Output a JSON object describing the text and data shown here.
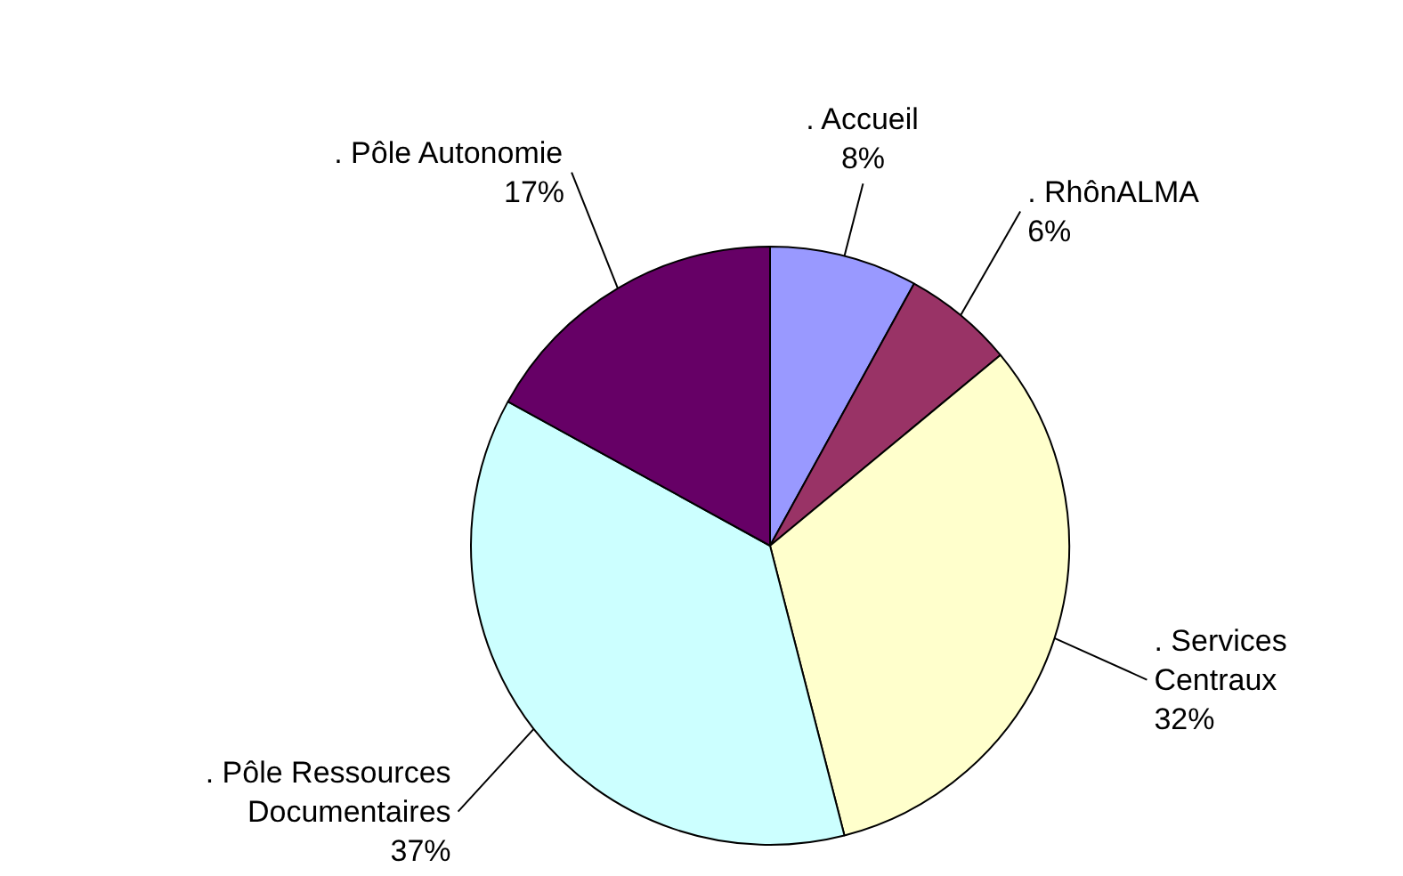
{
  "chart_data": {
    "type": "pie",
    "categories": [
      ". Accueil",
      ". RhônALMA",
      ". Services Centraux",
      ". Pôle Ressources Documentaires",
      ". Pôle Autonomie"
    ],
    "values": [
      8,
      6,
      32,
      37,
      17
    ],
    "colors": [
      "#9999ff",
      "#993366",
      "#ffffcc",
      "#ccffff",
      "#660066"
    ],
    "value_labels": [
      "8%",
      "6%",
      "32%",
      "37%",
      "17%"
    ]
  }
}
